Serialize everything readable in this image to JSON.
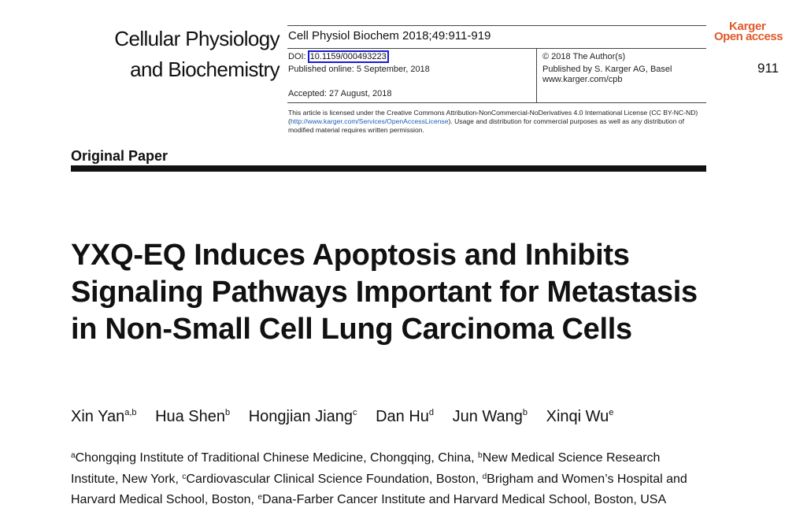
{
  "journal": {
    "name_line1": "Cellular Physiology",
    "name_line2": "and Biochemistry",
    "citation": "Cell Physiol Biochem 2018;49:911-919",
    "doi_label": "DOI:",
    "doi": "10.1159/000493223",
    "published_online": "Published online: 5 September, 2018",
    "accepted": "Accepted: 27 August, 2018",
    "copyright": "© 2018 The Author(s)",
    "publisher": "Published by S. Karger AG, Basel",
    "website": "www.karger.com/cpb",
    "license_before": "This article is licensed under the Creative Commons Attribution-NonCommercial-NoDerivatives 4.0 International License (CC BY-NC-ND) (",
    "license_url": "http://www.karger.com/Services/OpenAccessLicense",
    "license_after": "). Usage and distribution for commercial purposes as well as any distribution of modified material requires written permission.",
    "page_number": "911"
  },
  "logo": {
    "top": "Karger",
    "bottom": "Open access",
    "color": "#e05a2a"
  },
  "section_label": "Original Paper",
  "title": "YXQ-EQ Induces Apoptosis and Inhibits Signaling Pathways Important for Metastasis in Non-Small Cell Lung Carcinoma Cells",
  "authors": [
    {
      "name": "Xin Yan",
      "sup": "a,b"
    },
    {
      "name": "Hua Shen",
      "sup": "b"
    },
    {
      "name": "Hongjian Jiang",
      "sup": "c"
    },
    {
      "name": "Dan Hu",
      "sup": "d"
    },
    {
      "name": "Jun Wang",
      "sup": "b"
    },
    {
      "name": "Xinqi Wu",
      "sup": "e"
    }
  ],
  "affiliations": [
    {
      "sup": "a",
      "text": "Chongqing Institute of Traditional Chinese Medicine, Chongqing, China, "
    },
    {
      "sup": "b",
      "text": "New Medical Science Research Institute, New York, "
    },
    {
      "sup": "c",
      "text": "Cardiovascular Clinical Science Foundation, Boston, "
    },
    {
      "sup": "d",
      "text": "Brigham and Women’s Hospital and Harvard Medical School, Boston, "
    },
    {
      "sup": "e",
      "text": "Dana-Farber Cancer Institute and Harvard Medical School, Boston, USA"
    }
  ]
}
